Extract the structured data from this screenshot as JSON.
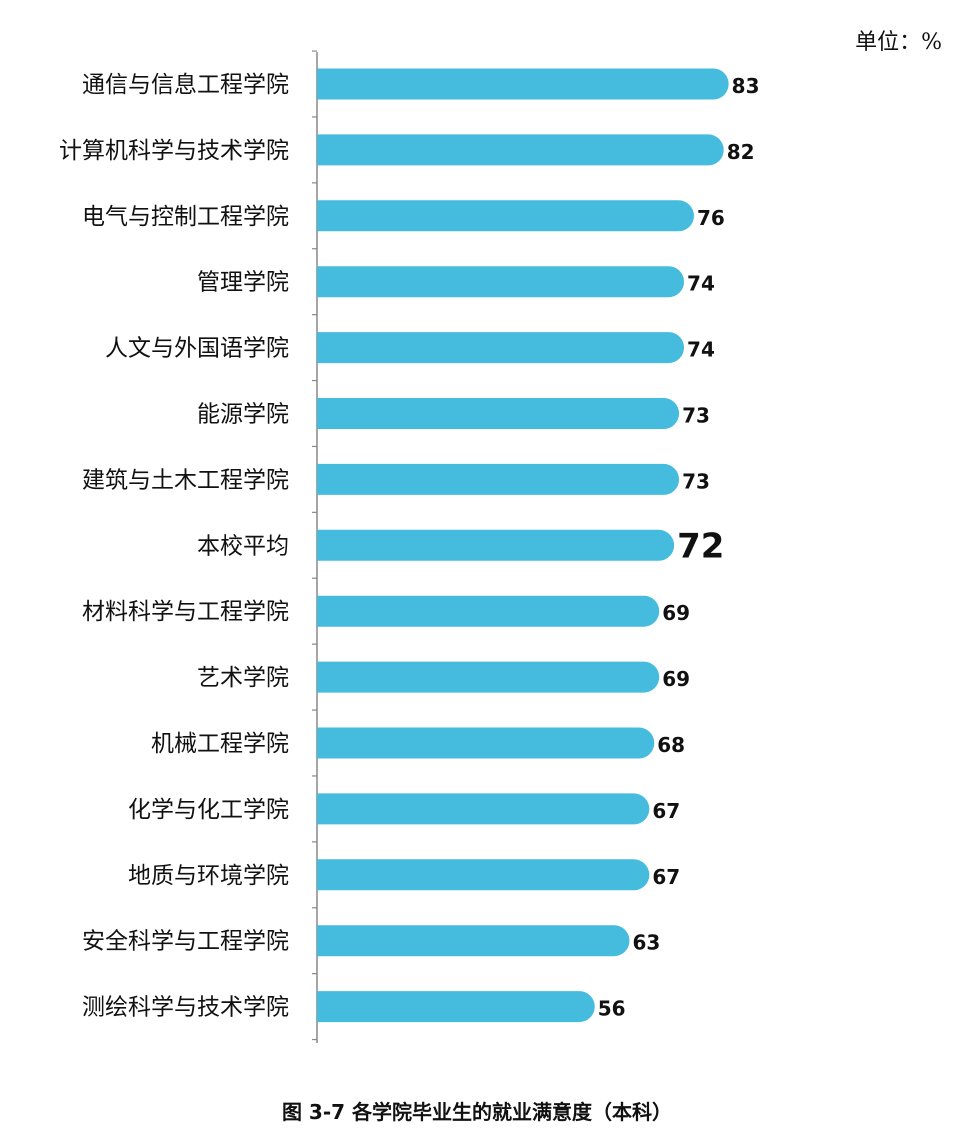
{
  "unit_label": "单位：%",
  "caption": "图  3-7  各学院毕业生的就业满意度（本科）",
  "colors": {
    "bar": "#45BCDD",
    "axis": "#888888",
    "text": "#111111"
  },
  "chart_data": {
    "type": "bar",
    "orientation": "horizontal",
    "categories": [
      "通信与信息工程学院",
      "计算机科学与技术学院",
      "电气与控制工程学院",
      "管理学院",
      "人文与外国语学院",
      "能源学院",
      "建筑与土木工程学院",
      "本校平均",
      "材料科学与工程学院",
      "艺术学院",
      "机械工程学院",
      "化学与化工学院",
      "地质与环境学院",
      "安全科学与工程学院",
      "测绘科学与技术学院"
    ],
    "values": [
      83,
      82,
      76,
      74,
      74,
      73,
      73,
      72,
      69,
      69,
      68,
      67,
      67,
      63,
      56
    ],
    "highlight_category": "本校平均",
    "title": "",
    "xlabel": "",
    "ylabel": "",
    "xlim": [
      0,
      100
    ],
    "grid": false,
    "legend": "none"
  }
}
